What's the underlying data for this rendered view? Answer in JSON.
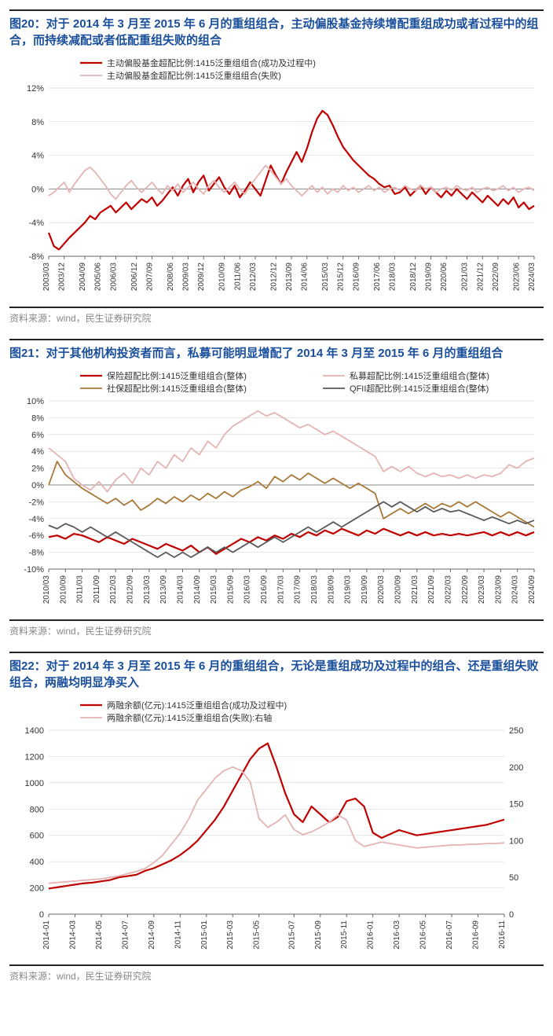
{
  "source_text": "资料来源：wind，民生证券研究院",
  "chart20": {
    "type": "line",
    "title": "图20：对于 2014 年 3 月至 2015 年 6 月的重组组合，主动偏股基金持续增配重组成功或者过程中的组合，而持续减配或者低配重组失败的组合",
    "legend": [
      {
        "label": "主动偏股基金超配比例:1415泛重组组合(成功及过程中)",
        "color": "#c00000",
        "width": 2.2
      },
      {
        "label": "主动偏股基金超配比例:1415泛重组组合(失败)",
        "color": "#e6b3b3",
        "width": 1.8
      }
    ],
    "ylim": [
      -8,
      12
    ],
    "ytick_step": 4,
    "ysuffix": "%",
    "background": "#ffffff",
    "xticks": [
      "2003/03",
      "2003/12",
      "2004/09",
      "2005/06",
      "2006/03",
      "2006/12",
      "2007/09",
      "2008/06",
      "2009/03",
      "2009/12",
      "2010/09",
      "2011/06",
      "2012/03",
      "2012/12",
      "2013/09",
      "2014/06",
      "2015/03",
      "2015/12",
      "2016/09",
      "2017/06",
      "2018/03",
      "2018/12",
      "2019/09",
      "2020/06",
      "2021/03",
      "2021/12",
      "2022/09",
      "2023/06",
      "2024/03"
    ],
    "series": [
      {
        "color": "#c00000",
        "width": 2.2,
        "data": [
          -5.2,
          -6.8,
          -7.2,
          -6.5,
          -5.8,
          -5.2,
          -4.6,
          -4.0,
          -3.2,
          -3.6,
          -2.8,
          -2.4,
          -2.0,
          -2.8,
          -2.2,
          -1.6,
          -2.4,
          -1.8,
          -1.2,
          -1.6,
          -1.0,
          -2.0,
          -1.4,
          -0.6,
          0.2,
          -0.8,
          0.4,
          1.2,
          -0.4,
          0.8,
          1.6,
          -0.2,
          0.6,
          1.4,
          0.2,
          -0.6,
          0.4,
          -1.0,
          -0.2,
          0.8,
          0.0,
          -0.8,
          1.0,
          2.8,
          1.6,
          0.6,
          2.0,
          3.2,
          4.4,
          3.2,
          4.8,
          6.8,
          8.4,
          9.3,
          8.8,
          7.6,
          6.2,
          5.0,
          4.2,
          3.4,
          2.8,
          2.2,
          1.6,
          1.2,
          0.6,
          0.2,
          0.4,
          -0.6,
          -0.4,
          0.2,
          -0.8,
          -0.2,
          0.4,
          -0.6,
          0.2,
          -0.4,
          -1.0,
          -0.2,
          -0.8,
          0.0,
          -0.6,
          -1.2,
          -0.4,
          -1.0,
          -1.6,
          -0.8,
          -1.4,
          -2.0,
          -1.2,
          -1.8,
          -1.0,
          -2.2,
          -1.6,
          -2.4,
          -2.0
        ]
      },
      {
        "color": "#e6b3b3",
        "width": 1.8,
        "data": [
          -0.8,
          -0.4,
          0.2,
          0.8,
          -0.4,
          0.6,
          1.4,
          2.2,
          2.6,
          2.0,
          1.2,
          0.4,
          -0.6,
          -1.2,
          -0.4,
          0.4,
          1.0,
          0.2,
          -0.4,
          0.2,
          0.8,
          0.0,
          -0.6,
          0.4,
          -0.2,
          0.6,
          -0.4,
          0.2,
          0.8,
          0.0,
          -0.6,
          0.4,
          1.0,
          0.2,
          -0.4,
          0.2,
          0.8,
          0.0,
          -0.6,
          0.4,
          1.2,
          2.0,
          2.8,
          2.2,
          1.4,
          0.6,
          1.2,
          0.4,
          -0.2,
          -0.8,
          -0.2,
          0.4,
          -0.4,
          0.2,
          -0.6,
          0.0,
          -0.4,
          0.4,
          -0.2,
          0.2,
          -0.4,
          0.0,
          0.4,
          -0.2,
          0.2,
          -0.4,
          0.0,
          0.2,
          -0.2,
          0.4,
          0.0,
          -0.2,
          0.4,
          0.0,
          0.2,
          -0.4,
          0.0,
          0.2,
          -0.2,
          0.4,
          0.0,
          -0.2,
          0.2,
          -0.4,
          0.0,
          0.2,
          -0.2,
          0.0,
          0.4,
          -0.2,
          0.2,
          -0.4,
          0.0,
          0.2,
          -0.2
        ]
      }
    ]
  },
  "chart21": {
    "type": "line",
    "title": "图21：对于其他机构投资者而言，私募可能明显增配了 2014 年 3 月至 2015 年 6 月的重组组合",
    "legend": [
      {
        "label": "保险超配比例:1415泛重组组合(整体)",
        "color": "#c00000",
        "width": 2.2
      },
      {
        "label": "私募超配比例:1415泛重组组合(整体)",
        "color": "#e6b3b3",
        "width": 1.8
      },
      {
        "label": "社保超配比例:1415泛重组组合(整体)",
        "color": "#a87838",
        "width": 1.8
      },
      {
        "label": "QFII超配比例:1415泛重组组合(整体)",
        "color": "#5a5a5a",
        "width": 1.8
      }
    ],
    "ylim": [
      -10,
      10
    ],
    "ytick_step": 2,
    "ysuffix": "%",
    "background": "#ffffff",
    "xticks": [
      "2010/03",
      "2010/09",
      "2011/03",
      "2011/09",
      "2012/03",
      "2012/09",
      "2013/03",
      "2013/09",
      "2014/03",
      "2014/09",
      "2015/03",
      "2015/09",
      "2016/03",
      "2016/09",
      "2017/03",
      "2017/09",
      "2018/03",
      "2018/09",
      "2019/03",
      "2019/09",
      "2020/03",
      "2020/09",
      "2021/03",
      "2021/09",
      "2022/03",
      "2022/09",
      "2023/03",
      "2023/09",
      "2024/03",
      "2024/09"
    ],
    "series": [
      {
        "color": "#c00000",
        "width": 2.2,
        "data": [
          -6.2,
          -6.0,
          -6.4,
          -5.8,
          -6.0,
          -6.4,
          -6.8,
          -6.2,
          -6.6,
          -7.0,
          -6.4,
          -6.8,
          -7.2,
          -7.6,
          -7.0,
          -7.4,
          -7.8,
          -7.2,
          -8.0,
          -7.4,
          -8.2,
          -7.6,
          -7.0,
          -6.4,
          -6.8,
          -6.2,
          -6.6,
          -6.0,
          -6.4,
          -5.8,
          -6.2,
          -5.6,
          -6.0,
          -5.4,
          -5.8,
          -5.2,
          -5.6,
          -6.0,
          -5.4,
          -5.8,
          -5.2,
          -5.6,
          -6.0,
          -5.6,
          -6.0,
          -5.6,
          -6.0,
          -5.8,
          -6.0,
          -5.8,
          -6.0,
          -5.8,
          -5.6,
          -6.0,
          -5.6,
          -6.0,
          -5.6,
          -6.0,
          -5.6
        ]
      },
      {
        "color": "#e6b3b3",
        "width": 1.8,
        "data": [
          4.4,
          3.6,
          2.8,
          0.8,
          0.0,
          -0.6,
          0.4,
          -0.8,
          0.6,
          1.4,
          0.2,
          2.0,
          1.2,
          2.8,
          2.0,
          3.6,
          2.8,
          4.4,
          3.6,
          5.2,
          4.4,
          6.0,
          7.0,
          7.6,
          8.2,
          8.8,
          8.2,
          8.6,
          8.0,
          7.4,
          6.8,
          7.2,
          6.6,
          6.0,
          6.4,
          5.8,
          5.2,
          4.6,
          4.0,
          3.4,
          1.6,
          2.2,
          1.6,
          2.2,
          1.4,
          1.0,
          1.4,
          1.0,
          1.2,
          0.8,
          1.2,
          0.8,
          1.2,
          1.0,
          1.4,
          2.4,
          2.0,
          2.8,
          3.2
        ]
      },
      {
        "color": "#a87838",
        "width": 1.8,
        "data": [
          0.0,
          2.8,
          1.2,
          0.4,
          -0.4,
          -1.0,
          -1.6,
          -2.2,
          -1.6,
          -2.4,
          -1.8,
          -3.0,
          -2.4,
          -1.6,
          -2.2,
          -1.4,
          -2.0,
          -1.2,
          -1.8,
          -1.0,
          -1.6,
          -0.8,
          -1.4,
          -0.6,
          -0.2,
          0.4,
          -0.4,
          1.0,
          0.4,
          1.2,
          0.6,
          1.4,
          0.8,
          0.2,
          0.8,
          0.2,
          -0.4,
          0.2,
          -0.4,
          -1.0,
          -4.0,
          -3.4,
          -2.8,
          -3.4,
          -2.8,
          -2.2,
          -2.8,
          -2.2,
          -2.6,
          -2.0,
          -2.6,
          -2.0,
          -2.6,
          -3.2,
          -3.8,
          -3.2,
          -3.8,
          -4.4,
          -5.0
        ]
      },
      {
        "color": "#5a5a5a",
        "width": 1.8,
        "data": [
          -4.8,
          -5.2,
          -4.6,
          -5.0,
          -5.6,
          -5.0,
          -5.6,
          -6.2,
          -5.6,
          -6.2,
          -6.8,
          -7.4,
          -8.0,
          -8.6,
          -8.0,
          -8.6,
          -8.0,
          -8.6,
          -8.0,
          -7.4,
          -8.0,
          -7.4,
          -8.0,
          -7.4,
          -6.8,
          -7.4,
          -6.8,
          -6.2,
          -6.8,
          -6.2,
          -5.6,
          -5.0,
          -5.6,
          -5.0,
          -4.4,
          -5.0,
          -4.4,
          -3.8,
          -3.2,
          -2.6,
          -2.0,
          -2.6,
          -2.0,
          -2.6,
          -3.2,
          -2.6,
          -3.2,
          -2.8,
          -3.2,
          -3.0,
          -3.4,
          -3.8,
          -4.2,
          -3.8,
          -4.2,
          -4.6,
          -4.2,
          -4.6,
          -4.2
        ]
      }
    ]
  },
  "chart22": {
    "type": "line-dual-axis",
    "title": "图22：对于 2014 年 3 月至 2015 年 6 月的重组组合，无论是重组成功及过程中的组合、还是重组失败组合，两融均明显净买入",
    "legend": [
      {
        "label": "两融余额(亿元):1415泛重组组合(成功及过程中)",
        "color": "#c00000",
        "width": 2.2
      },
      {
        "label": "两融余额(亿元):1415泛重组组合(失败):右轴",
        "color": "#e6b3b3",
        "width": 1.8
      }
    ],
    "ylim_left": [
      0,
      1400
    ],
    "ytick_step_left": 200,
    "ylim_right": [
      0,
      250
    ],
    "ytick_step_right": 50,
    "background": "#ffffff",
    "xticks": [
      "2014-01",
      "2014-03",
      "2014-05",
      "2014-07",
      "2014-09",
      "2014-11",
      "2015-01",
      "2015-03",
      "2015-05",
      "2015-07",
      "2015-09",
      "2015-11",
      "2016-01",
      "2016-03",
      "2016-05",
      "2016-07",
      "2016-09",
      "2016-11"
    ],
    "series": [
      {
        "axis": "left",
        "color": "#c00000",
        "width": 2.2,
        "data": [
          195,
          205,
          215,
          225,
          235,
          240,
          250,
          260,
          280,
          290,
          300,
          330,
          350,
          380,
          410,
          450,
          500,
          560,
          640,
          720,
          820,
          940,
          1060,
          1180,
          1260,
          1300,
          1120,
          920,
          760,
          700,
          820,
          760,
          700,
          740,
          860,
          880,
          820,
          620,
          580,
          610,
          640,
          620,
          600,
          610,
          620,
          630,
          640,
          650,
          660,
          670,
          680,
          700,
          720
        ]
      },
      {
        "axis": "right",
        "color": "#e6b3b3",
        "width": 1.8,
        "data": [
          42,
          43,
          44,
          45,
          46,
          47,
          48,
          50,
          52,
          55,
          58,
          62,
          70,
          80,
          95,
          110,
          130,
          155,
          170,
          185,
          195,
          200,
          195,
          180,
          130,
          118,
          125,
          135,
          115,
          108,
          112,
          118,
          125,
          135,
          128,
          100,
          92,
          95,
          98,
          96,
          94,
          92,
          90,
          91,
          92,
          93,
          94,
          94,
          95,
          95,
          96,
          96,
          97
        ]
      }
    ]
  }
}
